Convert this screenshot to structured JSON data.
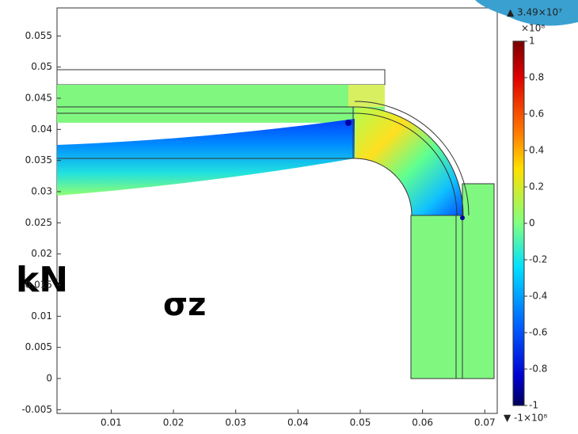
{
  "chart_data": {
    "type": "stress-plot",
    "title": "σz",
    "annotation": "kN",
    "xlim": [
      0.0013,
      0.072
    ],
    "ylim": [
      -0.0056,
      0.0595
    ],
    "xticks": [
      0.01,
      0.02,
      0.03,
      0.04,
      0.05,
      0.06,
      0.07
    ],
    "yticks": [
      -0.005,
      0,
      0.005,
      0.01,
      0.015,
      0.02,
      0.025,
      0.03,
      0.035,
      0.04,
      0.045,
      0.05,
      0.055
    ],
    "colorbar": {
      "clim": [
        -1,
        1
      ],
      "unit": "×10⁸",
      "max_label": "▲ 3.49×10⁷",
      "min_label": "▼ -1×10⁸",
      "ticks": [
        1,
        0.8,
        0.6,
        0.4,
        0.2,
        0,
        -0.2,
        -0.4,
        -0.6,
        -0.8,
        -1
      ]
    }
  }
}
